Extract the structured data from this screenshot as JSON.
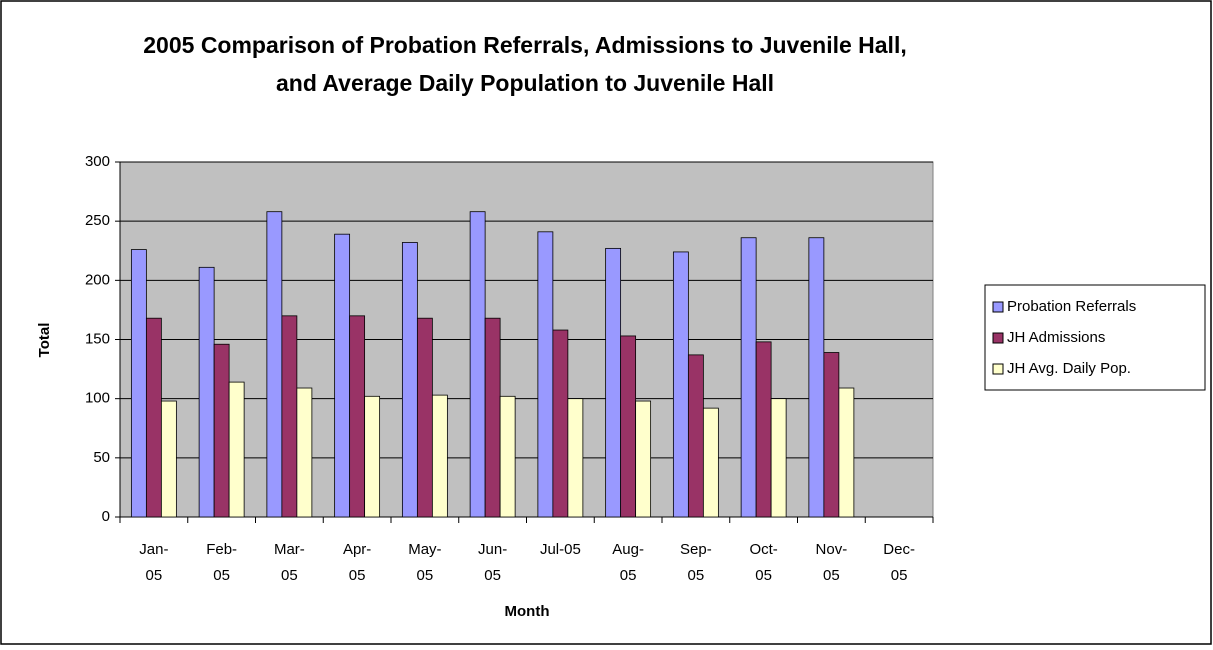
{
  "chart_data": {
    "type": "bar",
    "title": "2005 Comparison of Probation Referrals, Admissions to Juvenile Hall, and Average Daily Population to Juvenile Hall",
    "x_label": "Month",
    "y_label": "Total",
    "categories": [
      "Jan-05",
      "Feb-05",
      "Mar-05",
      "Apr-05",
      "May-05",
      "Jun-05",
      "Jul-05",
      "Aug-05",
      "Sep-05",
      "Oct-05",
      "Nov-05",
      "Dec-05"
    ],
    "series": [
      {
        "name": "Probation Referrals",
        "color": "#9999ff",
        "values": [
          226,
          211,
          258,
          239,
          232,
          258,
          241,
          227,
          224,
          236,
          236,
          null
        ]
      },
      {
        "name": "JH Admissions",
        "color": "#993366",
        "values": [
          168,
          146,
          170,
          170,
          168,
          168,
          158,
          153,
          137,
          148,
          139,
          null
        ]
      },
      {
        "name": "JH Avg. Daily Pop.",
        "color": "#ffffcc",
        "values": [
          98,
          114,
          109,
          102,
          103,
          102,
          100,
          98,
          92,
          100,
          109,
          null
        ]
      }
    ],
    "ylim": [
      0,
      300
    ],
    "yticks": [
      0,
      50,
      100,
      150,
      200,
      250,
      300
    ],
    "grid": true,
    "legend": "right"
  }
}
